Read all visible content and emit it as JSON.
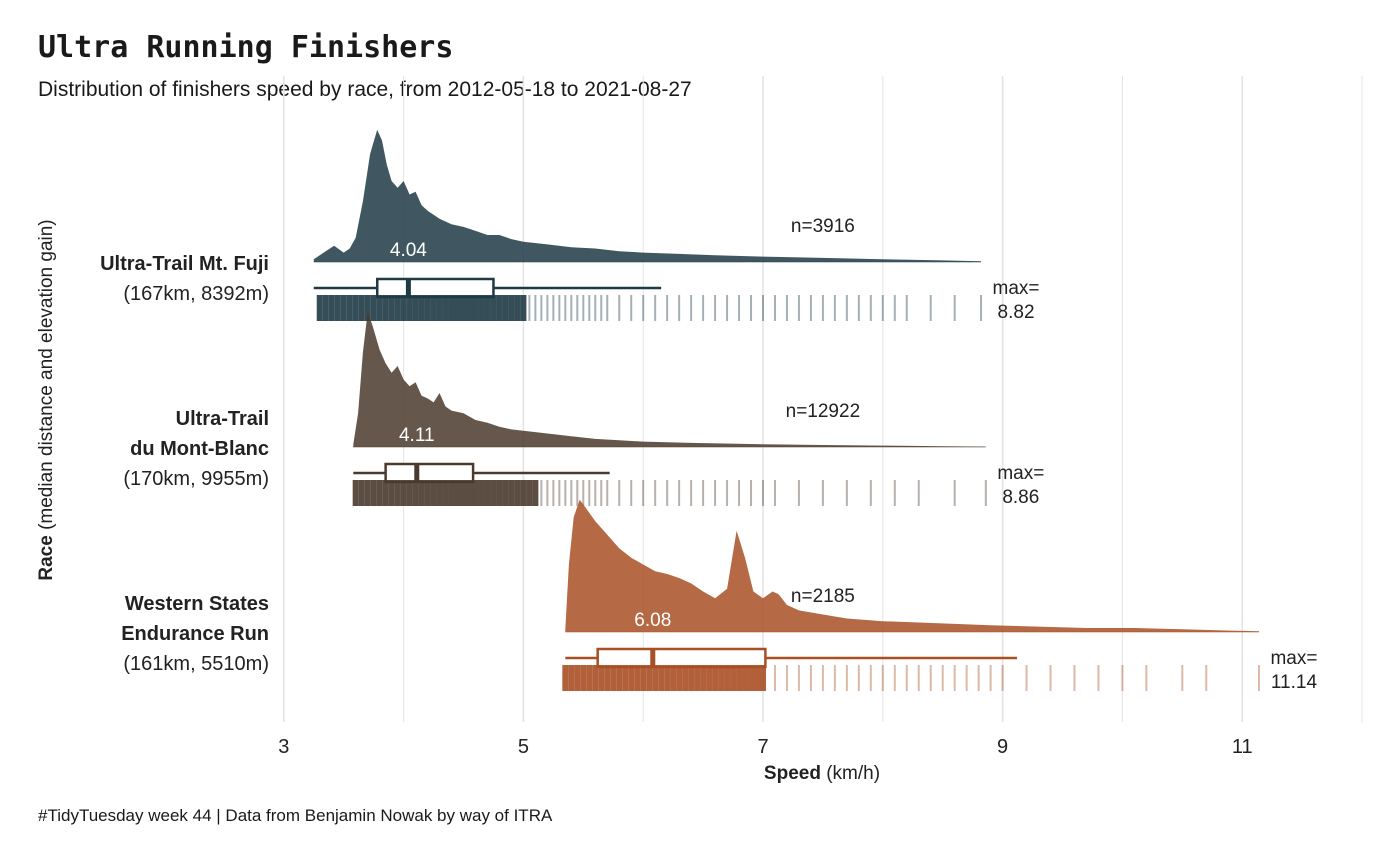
{
  "title": "Ultra Running Finishers",
  "subtitle": "Distribution of finishers speed by race, from 2012-05-18 to 2021-08-27",
  "caption": "#TidyTuesday week 44 | Data from Benjamin Nowak by way of ITRA",
  "chart_data": {
    "type": "ridgeline",
    "xlabel_bold": "Speed",
    "xlabel_rest": " (km/h)",
    "ylabel_bold": "Race",
    "ylabel_rest": " (median distance and elevation gain)",
    "xlim": [
      2,
      12
    ],
    "xticks": [
      3,
      5,
      7,
      9,
      11
    ],
    "grid": true,
    "series": [
      {
        "name_lines": [
          "Ultra-Trail Mt. Fuji"
        ],
        "detail": "(167km, 8392m)",
        "color": "#1f3a45",
        "n_label": "n=3916",
        "median_label": "4.04",
        "max_label_1": "max=",
        "max_label_2": "8.82",
        "min": 3.25,
        "q1": 3.78,
        "median": 4.04,
        "q3": 4.75,
        "whisker_hi": 6.15,
        "max": 8.82,
        "density": [
          [
            3.25,
            0.02
          ],
          [
            3.35,
            0.08
          ],
          [
            3.42,
            0.12
          ],
          [
            3.5,
            0.07
          ],
          [
            3.55,
            0.1
          ],
          [
            3.6,
            0.18
          ],
          [
            3.66,
            0.45
          ],
          [
            3.72,
            0.8
          ],
          [
            3.78,
            0.98
          ],
          [
            3.82,
            0.9
          ],
          [
            3.86,
            0.72
          ],
          [
            3.9,
            0.6
          ],
          [
            3.95,
            0.55
          ],
          [
            4.0,
            0.6
          ],
          [
            4.05,
            0.5
          ],
          [
            4.1,
            0.52
          ],
          [
            4.15,
            0.42
          ],
          [
            4.2,
            0.38
          ],
          [
            4.3,
            0.32
          ],
          [
            4.4,
            0.28
          ],
          [
            4.5,
            0.26
          ],
          [
            4.6,
            0.23
          ],
          [
            4.7,
            0.2
          ],
          [
            4.8,
            0.2
          ],
          [
            4.9,
            0.17
          ],
          [
            5.0,
            0.15
          ],
          [
            5.2,
            0.13
          ],
          [
            5.4,
            0.11
          ],
          [
            5.6,
            0.1
          ],
          [
            5.8,
            0.08
          ],
          [
            6.0,
            0.07
          ],
          [
            6.3,
            0.06
          ],
          [
            6.6,
            0.05
          ],
          [
            7.0,
            0.04
          ],
          [
            7.5,
            0.03
          ],
          [
            8.0,
            0.02
          ],
          [
            8.5,
            0.012
          ],
          [
            8.82,
            0.005
          ]
        ],
        "rug": [
          3.3,
          3.35,
          3.4,
          3.45,
          3.5,
          3.55,
          3.6,
          3.65,
          3.7,
          3.75,
          3.8,
          3.85,
          3.9,
          3.95,
          4.0,
          4.05,
          4.1,
          4.15,
          4.2,
          4.25,
          4.3,
          4.35,
          4.4,
          4.45,
          4.5,
          4.55,
          4.6,
          4.65,
          4.7,
          4.75,
          4.8,
          4.85,
          4.9,
          4.95,
          5.0,
          5.05,
          5.1,
          5.15,
          5.2,
          5.25,
          5.3,
          5.35,
          5.4,
          5.45,
          5.5,
          5.55,
          5.6,
          5.65,
          5.7,
          5.8,
          5.9,
          6.0,
          6.1,
          6.2,
          6.3,
          6.4,
          6.5,
          6.6,
          6.7,
          6.8,
          6.9,
          7.0,
          7.1,
          7.2,
          7.3,
          7.4,
          7.5,
          7.6,
          7.7,
          7.8,
          7.9,
          8.0,
          8.1,
          8.2,
          8.4,
          8.6,
          8.82
        ]
      },
      {
        "name_lines": [
          "Ultra-Trail",
          "du Mont-Blanc"
        ],
        "detail": "(170km, 9955m)",
        "color": "#4a3a2d",
        "n_label": "n=12922",
        "median_label": "4.11",
        "max_label_1": "max=",
        "max_label_2": "8.86",
        "min": 3.58,
        "q1": 3.85,
        "median": 4.11,
        "q3": 4.58,
        "whisker_hi": 5.72,
        "max": 8.86,
        "density": [
          [
            3.58,
            0.02
          ],
          [
            3.62,
            0.25
          ],
          [
            3.66,
            0.7
          ],
          [
            3.7,
            1.0
          ],
          [
            3.74,
            0.9
          ],
          [
            3.8,
            0.72
          ],
          [
            3.85,
            0.62
          ],
          [
            3.9,
            0.55
          ],
          [
            3.95,
            0.6
          ],
          [
            4.0,
            0.5
          ],
          [
            4.05,
            0.45
          ],
          [
            4.1,
            0.48
          ],
          [
            4.15,
            0.38
          ],
          [
            4.2,
            0.36
          ],
          [
            4.25,
            0.33
          ],
          [
            4.3,
            0.4
          ],
          [
            4.35,
            0.3
          ],
          [
            4.4,
            0.27
          ],
          [
            4.5,
            0.25
          ],
          [
            4.6,
            0.2
          ],
          [
            4.7,
            0.18
          ],
          [
            4.8,
            0.15
          ],
          [
            4.9,
            0.13
          ],
          [
            5.0,
            0.12
          ],
          [
            5.2,
            0.1
          ],
          [
            5.4,
            0.08
          ],
          [
            5.6,
            0.06
          ],
          [
            5.8,
            0.05
          ],
          [
            6.0,
            0.04
          ],
          [
            6.4,
            0.03
          ],
          [
            7.0,
            0.02
          ],
          [
            7.5,
            0.015
          ],
          [
            8.0,
            0.01
          ],
          [
            8.5,
            0.006
          ],
          [
            8.86,
            0.003
          ]
        ],
        "rug": [
          3.6,
          3.65,
          3.7,
          3.75,
          3.8,
          3.85,
          3.9,
          3.95,
          4.0,
          4.05,
          4.1,
          4.15,
          4.2,
          4.25,
          4.3,
          4.35,
          4.4,
          4.45,
          4.5,
          4.55,
          4.6,
          4.65,
          4.7,
          4.75,
          4.8,
          4.85,
          4.9,
          4.95,
          5.0,
          5.05,
          5.1,
          5.15,
          5.2,
          5.25,
          5.3,
          5.35,
          5.4,
          5.45,
          5.5,
          5.55,
          5.6,
          5.65,
          5.7,
          5.8,
          5.9,
          6.0,
          6.1,
          6.2,
          6.3,
          6.4,
          6.5,
          6.6,
          6.7,
          6.8,
          6.9,
          7.0,
          7.1,
          7.3,
          7.5,
          7.7,
          7.9,
          8.1,
          8.3,
          8.6,
          8.86
        ]
      },
      {
        "name_lines": [
          "Western States",
          "Endurance Run"
        ],
        "detail": "(161km, 5510m)",
        "color": "#a84f24",
        "n_label": "n=2185",
        "median_label": "6.08",
        "max_label_1": "max=",
        "max_label_2": "11.14",
        "min": 5.35,
        "q1": 5.62,
        "median": 6.08,
        "q3": 7.02,
        "whisker_hi": 9.12,
        "max": 11.14,
        "density": [
          [
            5.35,
            0.02
          ],
          [
            5.38,
            0.5
          ],
          [
            5.42,
            0.85
          ],
          [
            5.47,
            0.98
          ],
          [
            5.52,
            0.92
          ],
          [
            5.6,
            0.82
          ],
          [
            5.7,
            0.72
          ],
          [
            5.8,
            0.62
          ],
          [
            5.9,
            0.55
          ],
          [
            6.0,
            0.5
          ],
          [
            6.1,
            0.45
          ],
          [
            6.2,
            0.43
          ],
          [
            6.3,
            0.4
          ],
          [
            6.4,
            0.36
          ],
          [
            6.5,
            0.3
          ],
          [
            6.6,
            0.25
          ],
          [
            6.7,
            0.32
          ],
          [
            6.78,
            0.75
          ],
          [
            6.85,
            0.55
          ],
          [
            6.92,
            0.3
          ],
          [
            7.0,
            0.25
          ],
          [
            7.08,
            0.3
          ],
          [
            7.13,
            0.28
          ],
          [
            7.2,
            0.2
          ],
          [
            7.3,
            0.16
          ],
          [
            7.5,
            0.13
          ],
          [
            7.7,
            0.1
          ],
          [
            8.0,
            0.08
          ],
          [
            8.3,
            0.07
          ],
          [
            8.6,
            0.06
          ],
          [
            8.9,
            0.05
          ],
          [
            9.3,
            0.04
          ],
          [
            9.7,
            0.03
          ],
          [
            10.1,
            0.03
          ],
          [
            10.5,
            0.02
          ],
          [
            10.9,
            0.01
          ],
          [
            11.14,
            0.005
          ]
        ],
        "rug": [
          5.35,
          5.4,
          5.45,
          5.5,
          5.55,
          5.6,
          5.65,
          5.7,
          5.75,
          5.8,
          5.85,
          5.9,
          5.95,
          6.0,
          6.05,
          6.1,
          6.15,
          6.2,
          6.25,
          6.3,
          6.35,
          6.4,
          6.45,
          6.5,
          6.55,
          6.6,
          6.65,
          6.7,
          6.75,
          6.8,
          6.85,
          6.9,
          6.95,
          7.0,
          7.1,
          7.2,
          7.3,
          7.4,
          7.5,
          7.6,
          7.7,
          7.8,
          7.9,
          8.0,
          8.1,
          8.2,
          8.3,
          8.4,
          8.5,
          8.6,
          8.7,
          8.8,
          8.9,
          9.0,
          9.2,
          9.4,
          9.6,
          9.8,
          10.0,
          10.2,
          10.5,
          10.7,
          11.14
        ]
      }
    ]
  }
}
